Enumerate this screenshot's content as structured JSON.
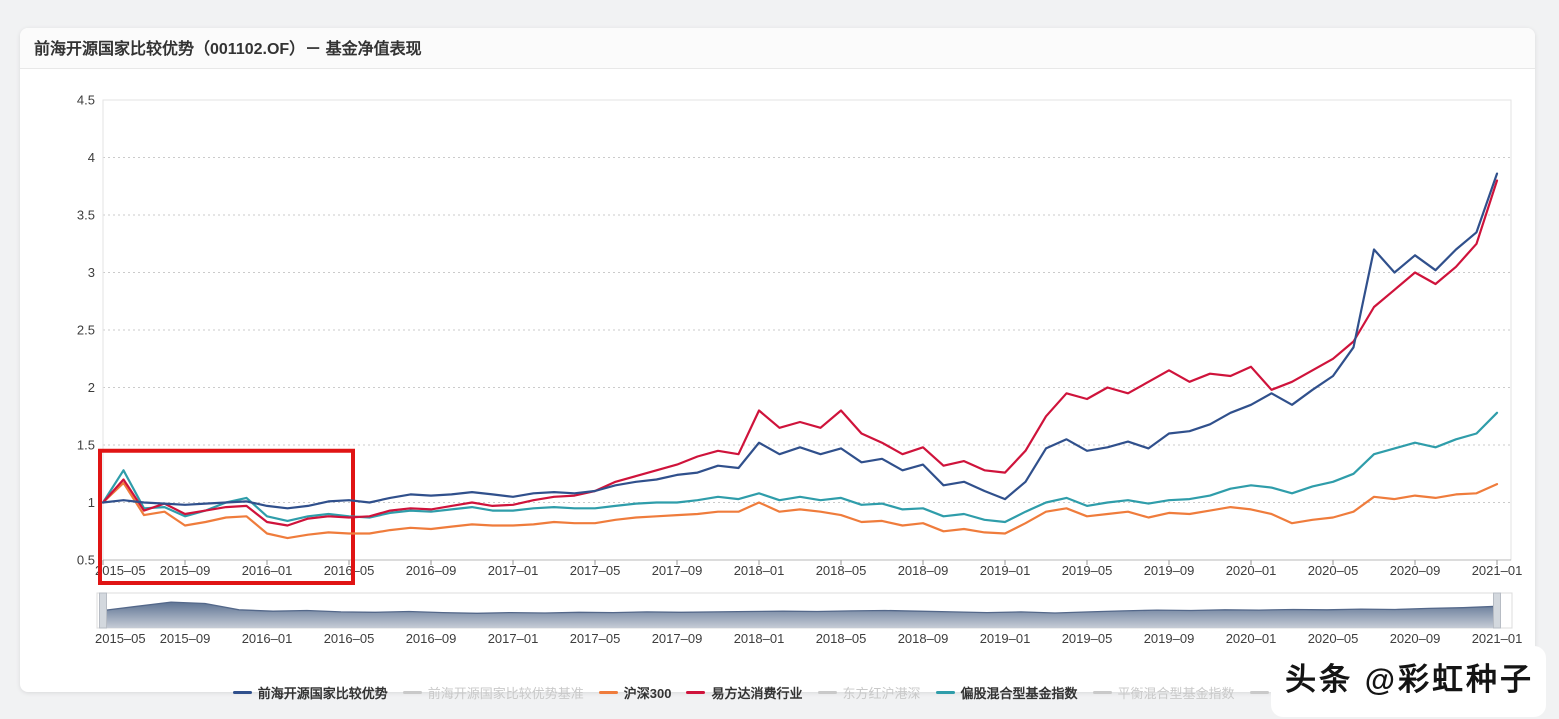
{
  "page": {
    "title": "前海开源国家比较优势（001102.OF）－ 基金净值表现",
    "watermark": "头条 @彩虹种子"
  },
  "chart_data": {
    "type": "line",
    "title": "前海开源国家比较优势（001102.OF）－ 基金净值表现",
    "x_start": "2015-05",
    "x_end": "2021-01",
    "x_tick_labels": [
      "2015-05",
      "2015-09",
      "2016-01",
      "2016-05",
      "2016-09",
      "2017-01",
      "2017-05",
      "2017-09",
      "2018-01",
      "2018-05",
      "2018-09",
      "2019-01",
      "2019-05",
      "2019-09",
      "2020-01",
      "2020-05",
      "2020-09",
      "2021-01"
    ],
    "y_ticks": [
      "0.5",
      "1",
      "1.5",
      "2",
      "2.5",
      "3",
      "3.5",
      "4",
      "4.5"
    ],
    "ylim": [
      0.5,
      4.5
    ],
    "grid": "horizontal-dotted",
    "legend_position": "bottom",
    "colors": {
      "fund": "#30508c",
      "hs300": "#ef7c3c",
      "efunds_consumer": "#cf133b",
      "equity_hybrid_index": "#2f9daa",
      "inactive": "#c9c9c9",
      "annotation": "#e01414",
      "navigator_fill_top": "#5e7494",
      "navigator_fill_bottom": "#c6ccd6"
    },
    "series": [
      {
        "name": "前海开源国家比较优势",
        "color": "#30508c",
        "active": true,
        "values": [
          1.0,
          1.02,
          1.0,
          0.99,
          0.98,
          0.99,
          1.0,
          1.01,
          0.97,
          0.95,
          0.97,
          1.01,
          1.02,
          1.0,
          1.04,
          1.07,
          1.06,
          1.07,
          1.09,
          1.07,
          1.05,
          1.08,
          1.09,
          1.08,
          1.1,
          1.15,
          1.18,
          1.2,
          1.24,
          1.26,
          1.32,
          1.3,
          1.52,
          1.42,
          1.48,
          1.42,
          1.47,
          1.35,
          1.38,
          1.28,
          1.33,
          1.15,
          1.18,
          1.1,
          1.03,
          1.18,
          1.47,
          1.55,
          1.45,
          1.48,
          1.53,
          1.47,
          1.6,
          1.62,
          1.68,
          1.78,
          1.85,
          1.95,
          1.85,
          1.98,
          2.1,
          2.35,
          3.2,
          3.0,
          3.15,
          3.02,
          3.2,
          3.35,
          3.86
        ]
      },
      {
        "name": "前海开源国家比较优势基准",
        "color": "#c9c9c9",
        "active": false,
        "values": []
      },
      {
        "name": "沪深300",
        "color": "#ef7c3c",
        "active": true,
        "values": [
          1.0,
          1.17,
          0.89,
          0.92,
          0.8,
          0.83,
          0.87,
          0.88,
          0.73,
          0.69,
          0.72,
          0.74,
          0.73,
          0.73,
          0.76,
          0.78,
          0.77,
          0.79,
          0.81,
          0.8,
          0.8,
          0.81,
          0.83,
          0.82,
          0.82,
          0.85,
          0.87,
          0.88,
          0.89,
          0.9,
          0.92,
          0.92,
          1.0,
          0.92,
          0.94,
          0.92,
          0.89,
          0.83,
          0.84,
          0.8,
          0.82,
          0.75,
          0.77,
          0.74,
          0.73,
          0.82,
          0.92,
          0.95,
          0.88,
          0.9,
          0.92,
          0.87,
          0.91,
          0.9,
          0.93,
          0.96,
          0.94,
          0.9,
          0.82,
          0.85,
          0.87,
          0.92,
          1.05,
          1.03,
          1.06,
          1.04,
          1.07,
          1.08,
          1.16
        ]
      },
      {
        "name": "易方达消费行业",
        "color": "#cf133b",
        "active": true,
        "values": [
          1.0,
          1.2,
          0.93,
          0.99,
          0.9,
          0.93,
          0.96,
          0.97,
          0.83,
          0.8,
          0.86,
          0.88,
          0.87,
          0.88,
          0.93,
          0.95,
          0.94,
          0.97,
          1.0,
          0.97,
          0.98,
          1.02,
          1.05,
          1.06,
          1.1,
          1.18,
          1.23,
          1.28,
          1.33,
          1.4,
          1.45,
          1.42,
          1.8,
          1.65,
          1.7,
          1.65,
          1.8,
          1.6,
          1.52,
          1.42,
          1.48,
          1.32,
          1.36,
          1.28,
          1.26,
          1.45,
          1.75,
          1.95,
          1.9,
          2.0,
          1.95,
          2.05,
          2.15,
          2.05,
          2.12,
          2.1,
          2.18,
          1.98,
          2.05,
          2.15,
          2.25,
          2.4,
          2.7,
          2.85,
          3.0,
          2.9,
          3.05,
          3.25,
          3.8
        ]
      },
      {
        "name": "东方红沪港深",
        "color": "#c9c9c9",
        "active": false,
        "values": []
      },
      {
        "name": "偏股混合型基金指数",
        "color": "#2f9daa",
        "active": true,
        "values": [
          1.0,
          1.28,
          0.95,
          0.96,
          0.88,
          0.93,
          1.0,
          1.04,
          0.88,
          0.84,
          0.88,
          0.9,
          0.88,
          0.87,
          0.91,
          0.93,
          0.92,
          0.94,
          0.96,
          0.93,
          0.93,
          0.95,
          0.96,
          0.95,
          0.95,
          0.97,
          0.99,
          1.0,
          1.0,
          1.02,
          1.05,
          1.03,
          1.08,
          1.02,
          1.05,
          1.02,
          1.04,
          0.98,
          0.99,
          0.94,
          0.95,
          0.88,
          0.9,
          0.85,
          0.83,
          0.92,
          1.0,
          1.04,
          0.97,
          1.0,
          1.02,
          0.99,
          1.02,
          1.03,
          1.06,
          1.12,
          1.15,
          1.13,
          1.08,
          1.14,
          1.18,
          1.25,
          1.42,
          1.47,
          1.52,
          1.48,
          1.55,
          1.6,
          1.78
        ]
      },
      {
        "name": "平衡混合型基金指数",
        "color": "#c9c9c9",
        "active": false,
        "values": []
      },
      {
        "name": "中证800",
        "color": "#c9c9c9",
        "active": false,
        "values": []
      }
    ],
    "annotation": {
      "type": "highlight-box",
      "from": "2015-05",
      "to": "2016-05",
      "value_top": 1.45,
      "color": "#e01414"
    },
    "navigator": {
      "from": "2015-05",
      "to": "2021-01",
      "profile": [
        0.5,
        0.62,
        0.74,
        0.7,
        0.52,
        0.48,
        0.5,
        0.46,
        0.45,
        0.47,
        0.44,
        0.42,
        0.44,
        0.43,
        0.45,
        0.44,
        0.46,
        0.45,
        0.46,
        0.47,
        0.48,
        0.47,
        0.49,
        0.5,
        0.48,
        0.46,
        0.44,
        0.46,
        0.43,
        0.46,
        0.49,
        0.51,
        0.5,
        0.52,
        0.51,
        0.53,
        0.52,
        0.54,
        0.53,
        0.56,
        0.58,
        0.62
      ]
    }
  }
}
